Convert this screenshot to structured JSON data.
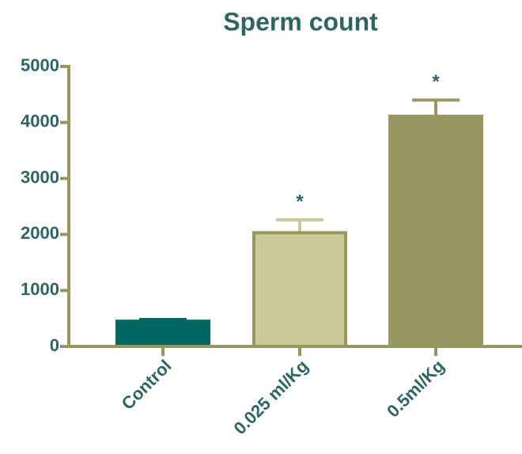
{
  "chart_data": {
    "type": "bar",
    "title": "Sperm count",
    "categories": [
      "Control",
      "0.025 ml/Kg",
      "0.5ml/Kg"
    ],
    "values": [
      450,
      2030,
      4110
    ],
    "errors": [
      30,
      230,
      290
    ],
    "annotations": [
      null,
      "*",
      "*"
    ],
    "colors": [
      "#006860",
      "#cccb98",
      "#9a9660"
    ],
    "edgecolors": [
      "#006860",
      "#9a9660",
      "#9a9660"
    ],
    "axis_color": "#9a9660",
    "ylim": [
      0,
      5000
    ],
    "yticks": [
      0,
      1000,
      2000,
      3000,
      4000,
      5000
    ],
    "grid": false
  }
}
